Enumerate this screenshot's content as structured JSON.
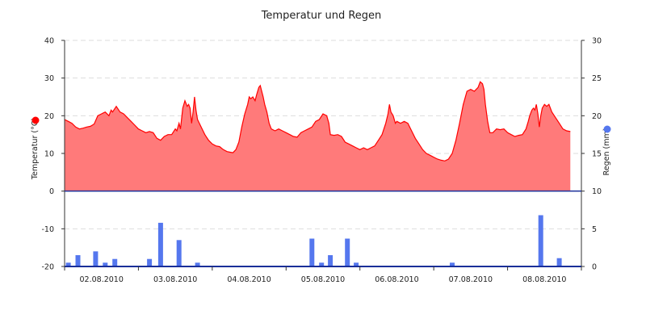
{
  "chart_data": {
    "type": "area",
    "title": "Temperatur und Regen",
    "x_labels": [
      "02.08.2010",
      "03.08.2010",
      "04.08.2010",
      "05.08.2010",
      "06.08.2010",
      "07.08.2010",
      "08.08.2010"
    ],
    "y_left": {
      "label": "Temperatur (°C)",
      "range": [
        -20,
        40
      ],
      "ticks": [
        40,
        30,
        20,
        10,
        0,
        -10,
        -20
      ],
      "marker_color": "#ff0000"
    },
    "y_right": {
      "label": "Regen (mm)",
      "range": [
        0,
        30
      ],
      "ticks": [
        30,
        25,
        20,
        15,
        10,
        5,
        0
      ],
      "marker_color": "#5577ee"
    },
    "grid": "dashed horizontal",
    "x_range_days": [
      0,
      7
    ],
    "series": [
      {
        "type": "area",
        "axis": "left",
        "color": "#ff0000",
        "fill": "#ff7a7a",
        "points": [
          [
            0.0,
            19.0
          ],
          [
            0.05,
            18.5
          ],
          [
            0.1,
            18.0
          ],
          [
            0.15,
            17.0
          ],
          [
            0.2,
            16.5
          ],
          [
            0.25,
            16.7
          ],
          [
            0.3,
            17.0
          ],
          [
            0.35,
            17.2
          ],
          [
            0.4,
            17.8
          ],
          [
            0.45,
            20.0
          ],
          [
            0.5,
            20.5
          ],
          [
            0.55,
            21.0
          ],
          [
            0.6,
            20.0
          ],
          [
            0.63,
            21.5
          ],
          [
            0.65,
            21.0
          ],
          [
            0.7,
            22.5
          ],
          [
            0.75,
            21.0
          ],
          [
            0.8,
            20.5
          ],
          [
            0.85,
            19.5
          ],
          [
            0.9,
            18.5
          ],
          [
            0.95,
            17.5
          ],
          [
            1.0,
            16.5
          ],
          [
            1.05,
            16.0
          ],
          [
            1.1,
            15.5
          ],
          [
            1.15,
            15.8
          ],
          [
            1.2,
            15.5
          ],
          [
            1.25,
            14.0
          ],
          [
            1.3,
            13.5
          ],
          [
            1.35,
            14.5
          ],
          [
            1.4,
            15.0
          ],
          [
            1.45,
            15.0
          ],
          [
            1.5,
            16.5
          ],
          [
            1.52,
            16.0
          ],
          [
            1.55,
            18.0
          ],
          [
            1.57,
            16.5
          ],
          [
            1.6,
            22.0
          ],
          [
            1.63,
            24.0
          ],
          [
            1.66,
            22.5
          ],
          [
            1.68,
            23.0
          ],
          [
            1.7,
            22.0
          ],
          [
            1.72,
            18.0
          ],
          [
            1.74,
            21.0
          ],
          [
            1.76,
            25.0
          ],
          [
            1.78,
            21.5
          ],
          [
            1.8,
            19.0
          ],
          [
            1.85,
            17.0
          ],
          [
            1.9,
            15.0
          ],
          [
            1.95,
            13.5
          ],
          [
            2.0,
            12.5
          ],
          [
            2.05,
            12.0
          ],
          [
            2.1,
            11.8
          ],
          [
            2.15,
            11.0
          ],
          [
            2.2,
            10.5
          ],
          [
            2.25,
            10.3
          ],
          [
            2.28,
            10.2
          ],
          [
            2.32,
            11.0
          ],
          [
            2.36,
            13.0
          ],
          [
            2.4,
            17.0
          ],
          [
            2.44,
            20.5
          ],
          [
            2.48,
            23.0
          ],
          [
            2.5,
            25.0
          ],
          [
            2.52,
            24.5
          ],
          [
            2.55,
            25.0
          ],
          [
            2.58,
            24.0
          ],
          [
            2.6,
            25.5
          ],
          [
            2.63,
            27.5
          ],
          [
            2.65,
            28.0
          ],
          [
            2.67,
            26.5
          ],
          [
            2.69,
            25.0
          ],
          [
            2.71,
            23.0
          ],
          [
            2.74,
            21.0
          ],
          [
            2.77,
            18.0
          ],
          [
            2.8,
            16.5
          ],
          [
            2.85,
            16.0
          ],
          [
            2.9,
            16.5
          ],
          [
            2.95,
            16.0
          ],
          [
            3.0,
            15.5
          ],
          [
            3.05,
            15.0
          ],
          [
            3.1,
            14.5
          ],
          [
            3.15,
            14.3
          ],
          [
            3.2,
            15.5
          ],
          [
            3.25,
            16.0
          ],
          [
            3.3,
            16.5
          ],
          [
            3.35,
            17.0
          ],
          [
            3.4,
            18.5
          ],
          [
            3.45,
            19.0
          ],
          [
            3.5,
            20.5
          ],
          [
            3.55,
            20.0
          ],
          [
            3.58,
            18.0
          ],
          [
            3.6,
            15.0
          ],
          [
            3.65,
            14.8
          ],
          [
            3.7,
            15.0
          ],
          [
            3.75,
            14.5
          ],
          [
            3.8,
            13.0
          ],
          [
            3.85,
            12.5
          ],
          [
            3.9,
            12.0
          ],
          [
            3.95,
            11.5
          ],
          [
            4.0,
            11.0
          ],
          [
            4.05,
            11.5
          ],
          [
            4.1,
            11.0
          ],
          [
            4.15,
            11.5
          ],
          [
            4.2,
            12.0
          ],
          [
            4.25,
            13.5
          ],
          [
            4.3,
            15.0
          ],
          [
            4.35,
            18.0
          ],
          [
            4.38,
            20.5
          ],
          [
            4.4,
            23.0
          ],
          [
            4.42,
            21.0
          ],
          [
            4.45,
            20.0
          ],
          [
            4.48,
            18.0
          ],
          [
            4.5,
            18.5
          ],
          [
            4.55,
            18.0
          ],
          [
            4.6,
            18.5
          ],
          [
            4.65,
            18.0
          ],
          [
            4.7,
            16.0
          ],
          [
            4.75,
            14.0
          ],
          [
            4.8,
            12.5
          ],
          [
            4.85,
            11.0
          ],
          [
            4.9,
            10.0
          ],
          [
            4.95,
            9.5
          ],
          [
            5.0,
            9.0
          ],
          [
            5.05,
            8.5
          ],
          [
            5.1,
            8.2
          ],
          [
            5.15,
            8.0
          ],
          [
            5.2,
            8.5
          ],
          [
            5.25,
            10.0
          ],
          [
            5.3,
            13.5
          ],
          [
            5.35,
            18.0
          ],
          [
            5.4,
            23.0
          ],
          [
            5.45,
            26.5
          ],
          [
            5.5,
            27.0
          ],
          [
            5.55,
            26.5
          ],
          [
            5.6,
            27.5
          ],
          [
            5.63,
            29.0
          ],
          [
            5.66,
            28.5
          ],
          [
            5.68,
            27.0
          ],
          [
            5.7,
            23.0
          ],
          [
            5.73,
            18.5
          ],
          [
            5.76,
            15.5
          ],
          [
            5.8,
            15.5
          ],
          [
            5.85,
            16.5
          ],
          [
            5.9,
            16.3
          ],
          [
            5.95,
            16.5
          ],
          [
            6.0,
            15.5
          ],
          [
            6.05,
            15.0
          ],
          [
            6.1,
            14.5
          ],
          [
            6.15,
            14.8
          ],
          [
            6.2,
            15.0
          ],
          [
            6.25,
            16.5
          ],
          [
            6.28,
            18.5
          ],
          [
            6.3,
            20.0
          ],
          [
            6.33,
            21.5
          ],
          [
            6.35,
            22.0
          ],
          [
            6.37,
            21.5
          ],
          [
            6.39,
            23.0
          ],
          [
            6.41,
            20.5
          ],
          [
            6.43,
            17.0
          ],
          [
            6.45,
            20.0
          ],
          [
            6.47,
            22.0
          ],
          [
            6.5,
            23.0
          ],
          [
            6.53,
            22.5
          ],
          [
            6.56,
            23.0
          ],
          [
            6.6,
            21.0
          ],
          [
            6.65,
            19.5
          ],
          [
            6.7,
            18.0
          ],
          [
            6.75,
            16.5
          ],
          [
            6.8,
            16.0
          ],
          [
            6.85,
            15.8
          ]
        ]
      },
      {
        "type": "bar",
        "axis": "right",
        "color": "#5577ee",
        "points": [
          [
            0.05,
            0.5
          ],
          [
            0.18,
            1.5
          ],
          [
            0.42,
            2.0
          ],
          [
            0.55,
            0.5
          ],
          [
            0.68,
            1.0
          ],
          [
            1.15,
            1.0
          ],
          [
            1.3,
            5.8
          ],
          [
            1.55,
            3.5
          ],
          [
            1.8,
            0.5
          ],
          [
            3.35,
            3.7
          ],
          [
            3.48,
            0.5
          ],
          [
            3.6,
            1.5
          ],
          [
            3.83,
            3.7
          ],
          [
            3.95,
            0.5
          ],
          [
            5.25,
            0.5
          ],
          [
            6.45,
            6.8
          ],
          [
            6.7,
            1.1
          ]
        ]
      }
    ]
  }
}
